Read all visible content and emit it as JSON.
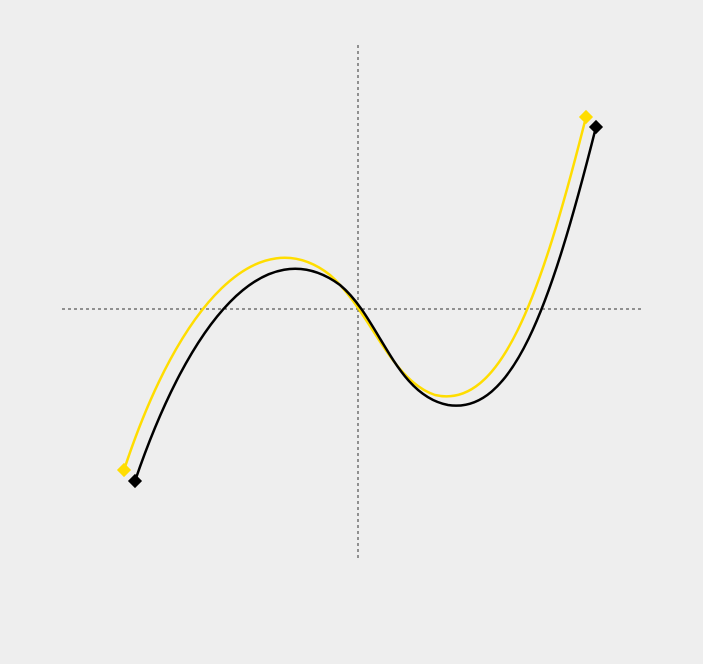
{
  "colors": {
    "background": "#eeeeee",
    "axis": "#333333",
    "curve_primary": "#000000",
    "curve_shadow": "#ffdd00"
  },
  "diagram": {
    "axes": {
      "dashed": true
    },
    "curves": [
      {
        "name": "yellow-curve",
        "color": "#ffdd00",
        "end_markers": "diamond"
      },
      {
        "name": "black-curve",
        "color": "#000000",
        "end_markers": "diamond"
      }
    ]
  }
}
